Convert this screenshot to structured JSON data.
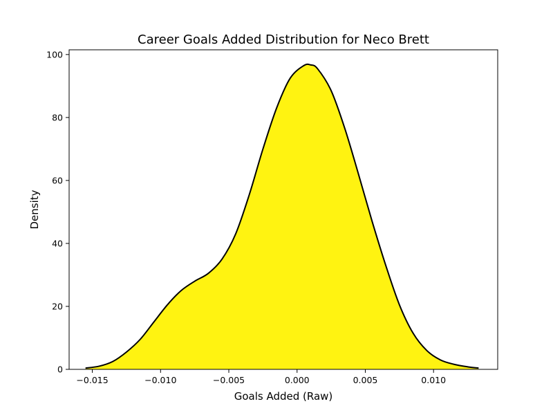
{
  "chart_data": {
    "type": "area",
    "title": "Career Goals Added Distribution for Neco Brett",
    "xlabel": "Goals Added (Raw)",
    "ylabel": "Density",
    "xlim": [
      -0.0167,
      0.0147
    ],
    "ylim": [
      0,
      101.5
    ],
    "xticks": [
      -0.015,
      -0.01,
      -0.005,
      0.0,
      0.005,
      0.01
    ],
    "xtick_labels": [
      "−0.015",
      "−0.010",
      "−0.005",
      "0.000",
      "0.005",
      "0.010"
    ],
    "yticks": [
      0,
      20,
      40,
      60,
      80,
      100
    ],
    "ytick_labels": [
      "0",
      "20",
      "40",
      "60",
      "80",
      "100"
    ],
    "grid": false,
    "fill_color": "#FFF311",
    "line_color": "#000000",
    "series": [
      {
        "x": [
          -0.0155,
          -0.0145,
          -0.0135,
          -0.0125,
          -0.0115,
          -0.0105,
          -0.0095,
          -0.0085,
          -0.0075,
          -0.0065,
          -0.0055,
          -0.0045,
          -0.0035,
          -0.0025,
          -0.0015,
          -0.0005,
          0.0005,
          0.001,
          0.0015,
          0.0025,
          0.0035,
          0.0045,
          0.0055,
          0.0065,
          0.0075,
          0.0085,
          0.0095,
          0.0105,
          0.0115,
          0.0125,
          0.0133
        ],
        "y": [
          0.4,
          1,
          2.5,
          5.5,
          9.5,
          15,
          20.5,
          25,
          28,
          30.5,
          35,
          43,
          55.5,
          70,
          83,
          92.5,
          96.5,
          96.7,
          95.5,
          88.5,
          76.5,
          62,
          47,
          33,
          20.5,
          11.5,
          6,
          3,
          1.6,
          0.8,
          0.4
        ]
      }
    ]
  }
}
